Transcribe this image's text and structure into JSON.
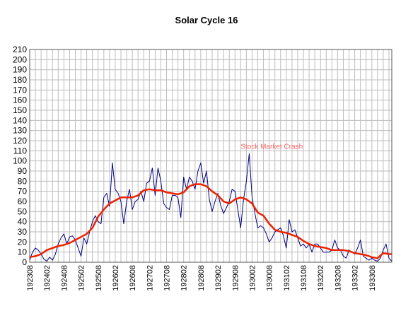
{
  "chart_data": {
    "type": "line",
    "title": "Solar Cycle 16",
    "xlabel": "",
    "ylabel": "",
    "ylim": [
      0,
      210
    ],
    "y_ticks": [
      0,
      10,
      20,
      30,
      40,
      50,
      60,
      70,
      80,
      90,
      100,
      110,
      120,
      130,
      140,
      150,
      160,
      170,
      180,
      190,
      200,
      210
    ],
    "x_tick_labels": [
      "192308",
      "192402",
      "192408",
      "192502",
      "192508",
      "192602",
      "192608",
      "192702",
      "192708",
      "192802",
      "192808",
      "192902",
      "192908",
      "193002",
      "193008",
      "193102",
      "193108",
      "193202",
      "193208",
      "193302",
      "193308"
    ],
    "grid": true,
    "legend": "none",
    "annotations": [
      {
        "text": "Stock Market Crash",
        "x": "192910",
        "y": 112,
        "color": "#ff6666"
      }
    ],
    "series": [
      {
        "style": "monthly",
        "color": "#000080",
        "points": [
          [
            "192308",
            2
          ],
          [
            "192309",
            10
          ],
          [
            "192310",
            14
          ],
          [
            "192311",
            12
          ],
          [
            "192312",
            8
          ],
          [
            "192401",
            3
          ],
          [
            "192402",
            1
          ],
          [
            "192403",
            5
          ],
          [
            "192404",
            2
          ],
          [
            "192405",
            8
          ],
          [
            "192406",
            18
          ],
          [
            "192407",
            24
          ],
          [
            "192408",
            28
          ],
          [
            "192409",
            18
          ],
          [
            "192410",
            25
          ],
          [
            "192411",
            26
          ],
          [
            "192412",
            22
          ],
          [
            "192501",
            14
          ],
          [
            "192502",
            6
          ],
          [
            "192503",
            24
          ],
          [
            "192504",
            18
          ],
          [
            "192505",
            30
          ],
          [
            "192506",
            40
          ],
          [
            "192507",
            46
          ],
          [
            "192508",
            40
          ],
          [
            "192509",
            38
          ],
          [
            "192510",
            64
          ],
          [
            "192511",
            68
          ],
          [
            "192512",
            55
          ],
          [
            "192601",
            98
          ],
          [
            "192602",
            72
          ],
          [
            "192603",
            68
          ],
          [
            "192604",
            60
          ],
          [
            "192605",
            38
          ],
          [
            "192606",
            60
          ],
          [
            "192607",
            72
          ],
          [
            "192608",
            52
          ],
          [
            "192609",
            60
          ],
          [
            "192610",
            62
          ],
          [
            "192611",
            70
          ],
          [
            "192612",
            60
          ],
          [
            "192701",
            78
          ],
          [
            "192702",
            80
          ],
          [
            "192703",
            93
          ],
          [
            "192704",
            66
          ],
          [
            "192705",
            93
          ],
          [
            "192706",
            80
          ],
          [
            "192707",
            58
          ],
          [
            "192708",
            54
          ],
          [
            "192709",
            52
          ],
          [
            "192710",
            66
          ],
          [
            "192711",
            66
          ],
          [
            "192712",
            64
          ],
          [
            "192801",
            44
          ],
          [
            "192802",
            84
          ],
          [
            "192803",
            72
          ],
          [
            "192804",
            84
          ],
          [
            "192805",
            80
          ],
          [
            "192806",
            72
          ],
          [
            "192807",
            90
          ],
          [
            "192808",
            98
          ],
          [
            "192809",
            78
          ],
          [
            "192810",
            90
          ],
          [
            "192811",
            62
          ],
          [
            "192812",
            50
          ],
          [
            "192901",
            60
          ],
          [
            "192902",
            68
          ],
          [
            "192903",
            56
          ],
          [
            "192904",
            48
          ],
          [
            "192905",
            54
          ],
          [
            "192906",
            60
          ],
          [
            "192907",
            72
          ],
          [
            "192908",
            70
          ],
          [
            "192909",
            52
          ],
          [
            "192910",
            34
          ],
          [
            "192911",
            62
          ],
          [
            "192912",
            80
          ],
          [
            "193001",
            107
          ],
          [
            "193002",
            64
          ],
          [
            "193003",
            48
          ],
          [
            "193004",
            34
          ],
          [
            "193005",
            36
          ],
          [
            "193006",
            34
          ],
          [
            "193007",
            28
          ],
          [
            "193008",
            20
          ],
          [
            "193009",
            24
          ],
          [
            "193010",
            30
          ],
          [
            "193011",
            32
          ],
          [
            "193012",
            34
          ],
          [
            "193101",
            26
          ],
          [
            "193102",
            14
          ],
          [
            "193103",
            42
          ],
          [
            "193104",
            30
          ],
          [
            "193105",
            32
          ],
          [
            "193106",
            24
          ],
          [
            "193107",
            16
          ],
          [
            "193108",
            18
          ],
          [
            "193109",
            14
          ],
          [
            "193110",
            18
          ],
          [
            "193111",
            10
          ],
          [
            "193112",
            18
          ],
          [
            "193201",
            18
          ],
          [
            "193202",
            14
          ],
          [
            "193203",
            10
          ],
          [
            "193204",
            10
          ],
          [
            "193205",
            10
          ],
          [
            "193206",
            12
          ],
          [
            "193207",
            22
          ],
          [
            "193208",
            14
          ],
          [
            "193209",
            12
          ],
          [
            "193210",
            6
          ],
          [
            "193211",
            4
          ],
          [
            "193212",
            12
          ],
          [
            "193301",
            10
          ],
          [
            "193302",
            8
          ],
          [
            "193303",
            14
          ],
          [
            "193304",
            22
          ],
          [
            "193305",
            6
          ],
          [
            "193306",
            4
          ],
          [
            "193307",
            2
          ],
          [
            "193308",
            4
          ],
          [
            "193309",
            2
          ],
          [
            "193310",
            1
          ],
          [
            "193311",
            4
          ],
          [
            "193312",
            12
          ],
          [
            "193401",
            18
          ],
          [
            "193402",
            4
          ],
          [
            "193403",
            1
          ]
        ]
      },
      {
        "style": "smoothed",
        "color": "#ee2200",
        "points": [
          [
            "192308",
            5
          ],
          [
            "192310",
            6
          ],
          [
            "192312",
            8
          ],
          [
            "192402",
            12
          ],
          [
            "192404",
            14
          ],
          [
            "192406",
            16
          ],
          [
            "192408",
            17
          ],
          [
            "192410",
            19
          ],
          [
            "192412",
            22
          ],
          [
            "192502",
            25
          ],
          [
            "192504",
            28
          ],
          [
            "192506",
            34
          ],
          [
            "192508",
            45
          ],
          [
            "192510",
            52
          ],
          [
            "192512",
            58
          ],
          [
            "192602",
            61
          ],
          [
            "192604",
            64
          ],
          [
            "192606",
            64
          ],
          [
            "192608",
            64
          ],
          [
            "192610",
            66
          ],
          [
            "192612",
            71
          ],
          [
            "192702",
            72
          ],
          [
            "192704",
            71
          ],
          [
            "192706",
            71
          ],
          [
            "192708",
            69
          ],
          [
            "192710",
            68
          ],
          [
            "192712",
            67
          ],
          [
            "192802",
            69
          ],
          [
            "192804",
            75
          ],
          [
            "192806",
            77
          ],
          [
            "192808",
            77
          ],
          [
            "192810",
            75
          ],
          [
            "192812",
            70
          ],
          [
            "192902",
            66
          ],
          [
            "192904",
            60
          ],
          [
            "192906",
            58
          ],
          [
            "192908",
            62
          ],
          [
            "192910",
            64
          ],
          [
            "192912",
            62
          ],
          [
            "193002",
            58
          ],
          [
            "193004",
            49
          ],
          [
            "193006",
            46
          ],
          [
            "193008",
            38
          ],
          [
            "193010",
            32
          ],
          [
            "193012",
            30
          ],
          [
            "193102",
            29
          ],
          [
            "193104",
            27
          ],
          [
            "193106",
            25
          ],
          [
            "193108",
            21
          ],
          [
            "193110",
            18
          ],
          [
            "193112",
            16
          ],
          [
            "193202",
            15
          ],
          [
            "193204",
            14
          ],
          [
            "193206",
            12
          ],
          [
            "193208",
            12
          ],
          [
            "193210",
            12
          ],
          [
            "193212",
            11
          ],
          [
            "193302",
            9
          ],
          [
            "193304",
            8
          ],
          [
            "193306",
            7
          ],
          [
            "193308",
            5
          ],
          [
            "193310",
            4
          ],
          [
            "193312",
            9
          ],
          [
            "193402",
            8
          ],
          [
            "193403",
            8
          ]
        ]
      }
    ]
  }
}
